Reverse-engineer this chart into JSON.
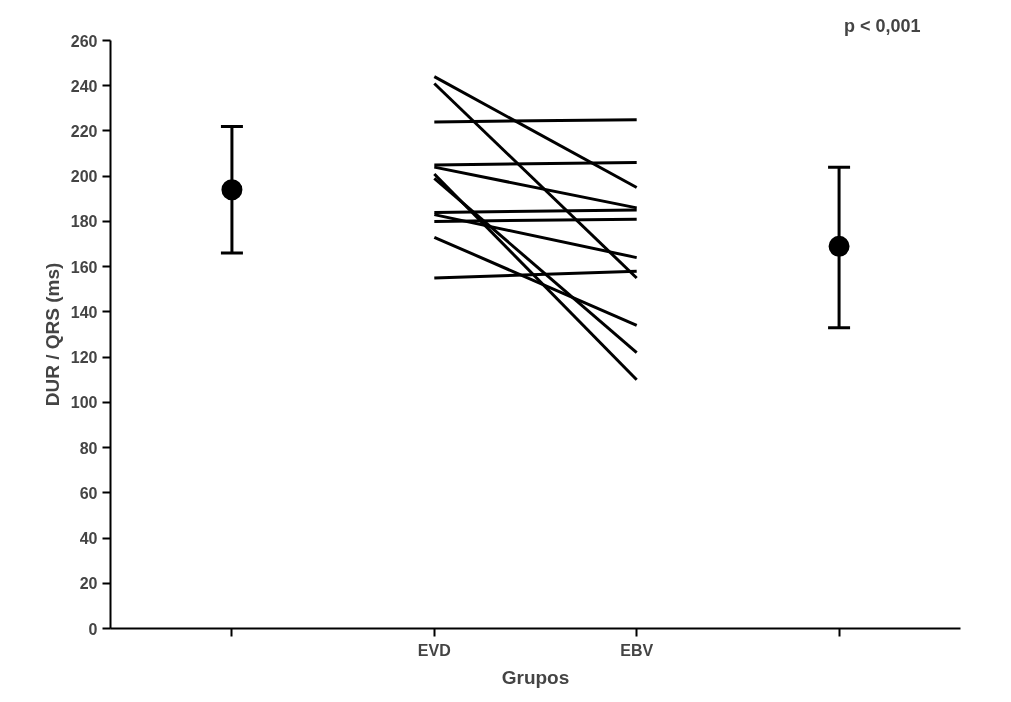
{
  "chart_data": {
    "type": "line",
    "xlabel": "Grupos",
    "ylabel": "DUR / QRS (ms)",
    "annotations": [
      "p < 0,001"
    ],
    "categories": [
      null,
      "EVD",
      "EBV",
      null
    ],
    "ylim": [
      0,
      260
    ],
    "yticks": [
      0,
      20,
      40,
      60,
      80,
      100,
      120,
      140,
      160,
      180,
      200,
      220,
      240,
      260
    ],
    "grid": false,
    "marker": "none",
    "line_style": "solid",
    "series": [
      {
        "color": "#000000",
        "values": [
          null,
          244,
          195,
          null
        ]
      },
      {
        "color": "#000000",
        "values": [
          null,
          241,
          155,
          null
        ]
      },
      {
        "color": "#000000",
        "values": [
          null,
          224,
          225,
          null
        ]
      },
      {
        "color": "#000000",
        "values": [
          null,
          205,
          206,
          null
        ]
      },
      {
        "color": "#000000",
        "values": [
          null,
          204,
          186,
          null
        ]
      },
      {
        "color": "#000000",
        "values": [
          null,
          201,
          110,
          null
        ]
      },
      {
        "color": "#000000",
        "values": [
          null,
          199,
          122,
          null
        ]
      },
      {
        "color": "#000000",
        "values": [
          null,
          184,
          185,
          null
        ]
      },
      {
        "color": "#000000",
        "values": [
          null,
          183,
          164,
          null
        ]
      },
      {
        "color": "#000000",
        "values": [
          null,
          180,
          181,
          null
        ]
      },
      {
        "color": "#000000",
        "values": [
          null,
          173,
          134,
          null
        ]
      },
      {
        "color": "#000000",
        "values": [
          null,
          155,
          158,
          null
        ]
      },
      {
        "type": "scatter",
        "marker": "circle",
        "color": "#000000",
        "values": [
          194,
          null,
          null,
          169
        ],
        "errors": [
          [
            166,
            222
          ],
          null,
          null,
          [
            133,
            204
          ]
        ]
      }
    ]
  }
}
